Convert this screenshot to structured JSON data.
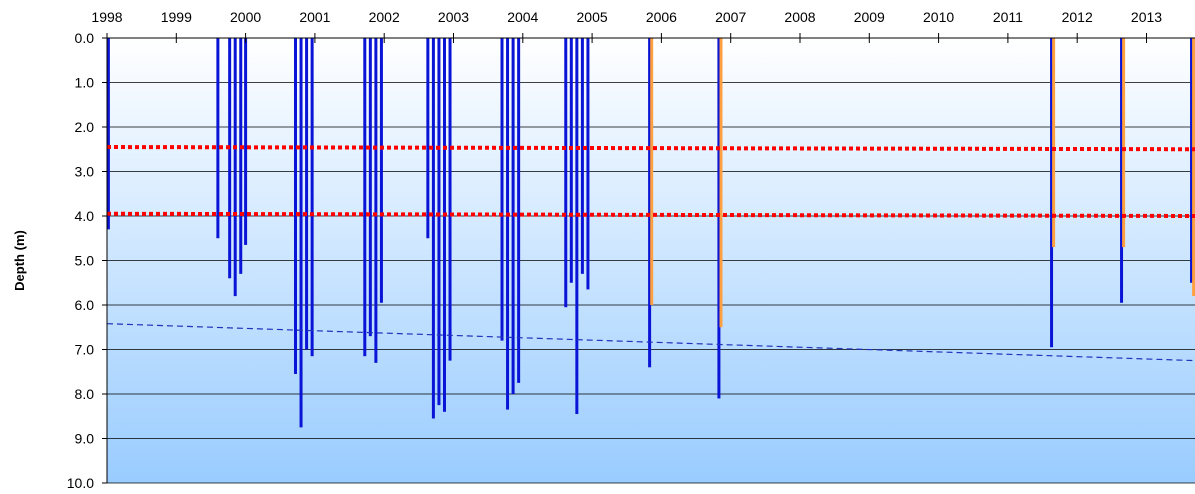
{
  "chart_data": {
    "type": "bar",
    "title": "",
    "ylabel": "Depth (m)",
    "xlabel": "",
    "x_ticks": [
      "1998",
      "1999",
      "2000",
      "2001",
      "2002",
      "2003",
      "2004",
      "2005",
      "2006",
      "2007",
      "2008",
      "2009",
      "2010",
      "2011",
      "2012",
      "2013"
    ],
    "xlim": [
      1998.0,
      2013.7
    ],
    "ylim": [
      0,
      10
    ],
    "y_inverted": true,
    "y_ticks": [
      "0.0",
      "1.0",
      "2.0",
      "3.0",
      "4.0",
      "5.0",
      "6.0",
      "7.0",
      "8.0",
      "9.0",
      "10.0"
    ],
    "grid": true,
    "series": [
      {
        "color": "#0a14d6",
        "x": [
          1998.02,
          1999.6,
          1999.77,
          1999.85,
          1999.93,
          2000.0,
          2000.72,
          2000.8,
          2000.88,
          2000.96,
          2001.72,
          2001.8,
          2001.88,
          2001.96,
          2002.63,
          2002.71,
          2002.79,
          2002.87,
          2002.95,
          2003.7,
          2003.78,
          2003.86,
          2003.94,
          2004.62,
          2004.7,
          2004.78,
          2004.86,
          2004.94,
          2005.83,
          2006.83,
          2011.63,
          2012.64,
          2013.65
        ],
        "values": [
          4.3,
          4.5,
          5.4,
          5.8,
          5.3,
          4.65,
          7.55,
          8.75,
          7.0,
          7.15,
          7.15,
          6.7,
          7.3,
          5.95,
          4.5,
          8.55,
          8.25,
          8.4,
          7.25,
          6.8,
          8.35,
          8.0,
          7.75,
          6.05,
          5.5,
          8.45,
          5.3,
          5.65,
          7.4,
          8.1,
          6.95,
          5.95,
          5.5
        ]
      },
      {
        "color": "#ffa040",
        "x": [
          2005.86,
          2006.86,
          2011.66,
          2012.67,
          2013.68
        ],
        "values": [
          6.0,
          6.5,
          4.7,
          4.7,
          5.8
        ]
      }
    ],
    "reference_lines": [
      {
        "color": "#ff0000",
        "style": "dotted",
        "y_start": 2.45,
        "y_end": 2.5
      },
      {
        "color": "#ff0000",
        "style": "dotted",
        "y_start": 3.95,
        "y_end": 4.0
      }
    ],
    "trend_line": {
      "color": "#2233bb",
      "style": "dashed",
      "x": [
        1998.0,
        2013.7
      ],
      "y": [
        6.42,
        7.25
      ]
    },
    "background_gradient": [
      "#ffffff",
      "#99ccff"
    ]
  }
}
